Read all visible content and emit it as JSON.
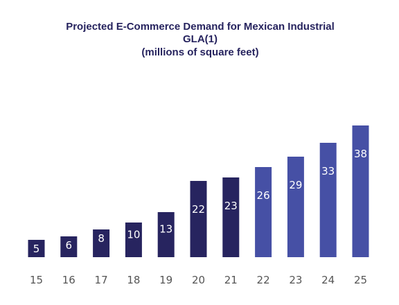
{
  "chart_data": {
    "type": "bar",
    "title_lines": [
      "Projected E-Commerce Demand for Mexican Industrial",
      "GLA(1)",
      "(millions of square feet)"
    ],
    "categories": [
      "15",
      "16",
      "17",
      "18",
      "19",
      "20",
      "21",
      "22",
      "23",
      "24",
      "25"
    ],
    "values": [
      5,
      6,
      8,
      10,
      13,
      22,
      23,
      26,
      29,
      33,
      38
    ],
    "projected": [
      false,
      false,
      false,
      false,
      false,
      false,
      false,
      true,
      true,
      true,
      true
    ],
    "xlabel": "",
    "ylabel": "",
    "ylim": [
      0,
      40
    ],
    "grid": false,
    "legend": "none",
    "colors": {
      "actual": "#27245f",
      "projected": "#4650a5"
    }
  }
}
